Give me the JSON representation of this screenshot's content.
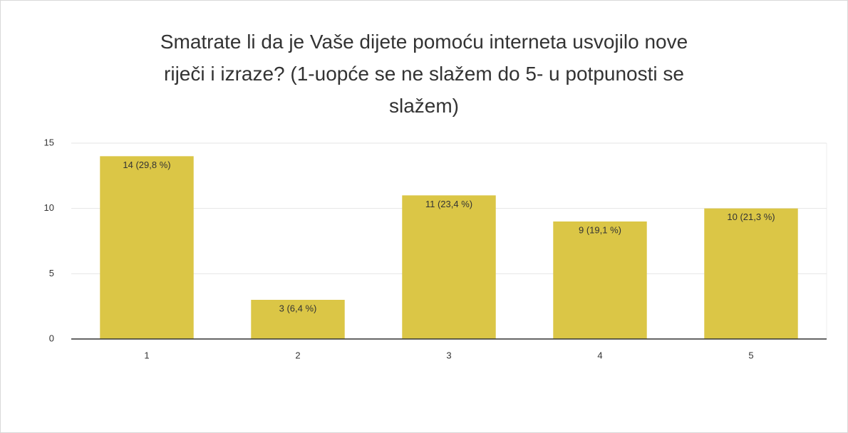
{
  "chart_data": {
    "type": "bar",
    "title": "Smatrate li da je Vaše dijete pomoću interneta usvojilo nove riječi i izraze? (1-uopće se ne slažem do 5- u potpunosti se slažem)",
    "categories": [
      "1",
      "2",
      "3",
      "4",
      "5"
    ],
    "values": [
      14,
      3,
      11,
      9,
      10
    ],
    "value_labels": [
      "14 (29,8 %)",
      "3 (6,4 %)",
      "11 (23,4 %)",
      "9 (19,1 %)",
      "10 (21,3 %)"
    ],
    "color": "#dbc646",
    "ylim": [
      0,
      15
    ],
    "yticks": [
      0,
      5,
      10,
      15
    ],
    "grid": true
  }
}
